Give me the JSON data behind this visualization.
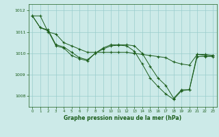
{
  "bg_color": "#cceae8",
  "line_color": "#1a5c1a",
  "grid_color": "#99cccc",
  "xlabel": "Graphe pression niveau de la mer (hPa)",
  "ylim": [
    1007.5,
    1012.3
  ],
  "xlim": [
    -0.5,
    23.5
  ],
  "yticks": [
    1008,
    1009,
    1010,
    1011,
    1012
  ],
  "xticks": [
    0,
    1,
    2,
    3,
    4,
    5,
    6,
    7,
    8,
    9,
    10,
    11,
    12,
    13,
    14,
    15,
    16,
    17,
    18,
    19,
    20,
    21,
    22,
    23
  ],
  "series": [
    [
      1011.75,
      1011.2,
      1011.1,
      1010.4,
      1010.3,
      1010.05,
      1009.8,
      1009.7,
      1010.0,
      1010.25,
      1010.4,
      1010.4,
      1010.4,
      1010.35,
      1010.0,
      1009.4,
      1008.85,
      1008.5,
      1007.9,
      1008.3,
      1008.3,
      1009.95,
      1009.9,
      1009.9
    ],
    [
      1011.75,
      1011.2,
      1011.05,
      1010.35,
      1010.25,
      1009.9,
      1009.75,
      1009.65,
      1010.0,
      1010.2,
      1010.35,
      1010.38,
      1010.35,
      1010.1,
      1009.5,
      1008.85,
      1008.45,
      1008.1,
      1007.85,
      1008.25,
      1008.3,
      1009.85,
      1009.85,
      1009.85
    ],
    [
      1011.75,
      1011.75,
      1011.0,
      1010.9,
      1010.5,
      1010.35,
      1010.2,
      1010.05,
      1010.05,
      1010.05,
      1010.05,
      1010.05,
      1010.05,
      1010.0,
      1009.95,
      1009.9,
      1009.85,
      1009.8,
      1009.6,
      1009.5,
      1009.45,
      1009.95,
      1009.95,
      1009.9
    ]
  ]
}
